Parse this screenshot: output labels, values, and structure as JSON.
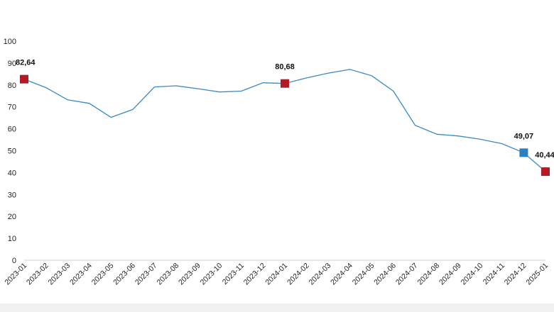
{
  "chart_data": {
    "type": "line",
    "title": "",
    "xlabel": "",
    "ylabel": "",
    "ylim": [
      0,
      100
    ],
    "yticks": [
      0,
      10,
      20,
      30,
      40,
      50,
      60,
      70,
      80,
      90,
      100
    ],
    "grid": false,
    "categories": [
      "2023-01",
      "2023-02",
      "2023-03",
      "2023-04",
      "2023-05",
      "2023-06",
      "2023-07",
      "2023-08",
      "2023-09",
      "2023-10",
      "2023-11",
      "2023-12",
      "2024-01",
      "2024-02",
      "2024-03",
      "2024-04",
      "2024-05",
      "2024-06",
      "2024-07",
      "2024-08",
      "2024-09",
      "2024-10",
      "2024-11",
      "2024-12",
      "2025-01"
    ],
    "series": [
      {
        "values": [
          82.64,
          78.8,
          73.2,
          71.6,
          65.2,
          68.8,
          79.1,
          79.6,
          78.3,
          76.8,
          77.2,
          81.0,
          80.68,
          83.2,
          85.4,
          87.1,
          84.2,
          77.2,
          61.6,
          57.5,
          56.7,
          55.2,
          53.2,
          49.07,
          40.44
        ],
        "color": "#3a8ac4"
      }
    ],
    "highlighted_points": [
      {
        "index": 0,
        "label": "82,64",
        "marker_color": "#b01c24"
      },
      {
        "index": 12,
        "label": "80,68",
        "marker_color": "#b01c24"
      },
      {
        "index": 23,
        "label": "49,07",
        "marker_color": "#2e7fbd"
      },
      {
        "index": 24,
        "label": "40,44",
        "marker_color": "#b01c24"
      }
    ]
  }
}
